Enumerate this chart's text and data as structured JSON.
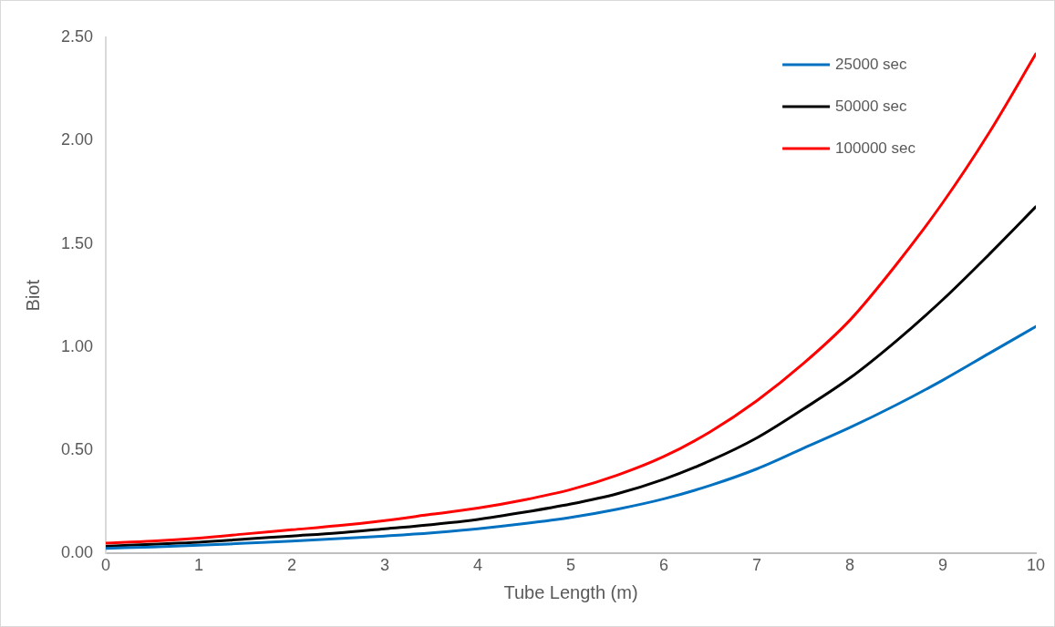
{
  "chart_data": {
    "type": "line",
    "xlabel": "Tube Length (m)",
    "ylabel": "Biot",
    "x": [
      0,
      0.5,
      1,
      1.5,
      2,
      2.5,
      3,
      3.5,
      4,
      4.5,
      5,
      5.5,
      6,
      6.5,
      7,
      7.5,
      8,
      8.5,
      9,
      9.5,
      10
    ],
    "series": [
      {
        "name": "25000 sec",
        "color": "#0070c0",
        "values": [
          0.025,
          0.032,
          0.04,
          0.05,
          0.06,
          0.072,
          0.085,
          0.1,
          0.12,
          0.145,
          0.175,
          0.215,
          0.265,
          0.33,
          0.41,
          0.51,
          0.61,
          0.72,
          0.84,
          0.97,
          1.1
        ]
      },
      {
        "name": "50000 sec",
        "color": "#000000",
        "values": [
          0.035,
          0.045,
          0.055,
          0.07,
          0.085,
          0.1,
          0.12,
          0.14,
          0.165,
          0.2,
          0.24,
          0.29,
          0.36,
          0.45,
          0.56,
          0.7,
          0.85,
          1.03,
          1.23,
          1.45,
          1.68
        ]
      },
      {
        "name": "100000 sec",
        "color": "#ff0000",
        "values": [
          0.05,
          0.06,
          0.075,
          0.095,
          0.115,
          0.135,
          0.16,
          0.19,
          0.22,
          0.26,
          0.31,
          0.38,
          0.47,
          0.59,
          0.74,
          0.92,
          1.13,
          1.4,
          1.7,
          2.04,
          2.42
        ]
      }
    ],
    "xlim": [
      0,
      10
    ],
    "xticks": [
      0,
      1,
      2,
      3,
      4,
      5,
      6,
      7,
      8,
      9,
      10
    ],
    "ylim": [
      0,
      2.5
    ],
    "yticks": [
      {
        "value": 0,
        "label": "0.00"
      },
      {
        "value": 0.5,
        "label": "0.50"
      },
      {
        "value": 1,
        "label": "1.00"
      },
      {
        "value": 1.5,
        "label": "1.50"
      },
      {
        "value": 2,
        "label": "2.00"
      },
      {
        "value": 2.5,
        "label": "2.50"
      }
    ],
    "grid": false,
    "legend": "top right",
    "marker": "none",
    "line_style": "solid"
  }
}
